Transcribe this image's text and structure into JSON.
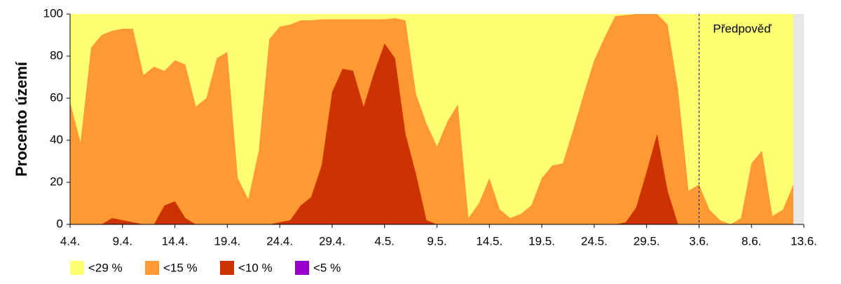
{
  "chart_data": {
    "type": "area",
    "ylabel": "Procento území",
    "categories": [
      "4.4.",
      null,
      null,
      null,
      null,
      "9.4.",
      null,
      null,
      null,
      null,
      "14.4.",
      null,
      null,
      null,
      null,
      "19.4.",
      null,
      null,
      null,
      null,
      "24.4.",
      null,
      null,
      null,
      null,
      "29.4.",
      null,
      null,
      null,
      null,
      "4.5.",
      null,
      null,
      null,
      null,
      "9.5.",
      null,
      null,
      null,
      null,
      "14.5.",
      null,
      null,
      null,
      null,
      "19.5.",
      null,
      null,
      null,
      null,
      "24.5.",
      null,
      null,
      null,
      null,
      "29.5.",
      null,
      null,
      null,
      null,
      "3.6.",
      null,
      null,
      null,
      null,
      "8.6.",
      null,
      null,
      null,
      null,
      "13.6."
    ],
    "ylim": [
      0,
      100
    ],
    "yticks": [
      0,
      20,
      40,
      60,
      80,
      100
    ],
    "annotation": {
      "text": "Předpověď",
      "at": "3.6."
    },
    "series": [
      {
        "name": "<29 %",
        "color": "#ffff73",
        "values": [
          100,
          100,
          100,
          100,
          100,
          100,
          100,
          100,
          100,
          100,
          100,
          100,
          100,
          100,
          100,
          100,
          100,
          100,
          100,
          100,
          100,
          100,
          100,
          100,
          100,
          100,
          100,
          100,
          100,
          100,
          100,
          100,
          100,
          100,
          100,
          100,
          100,
          100,
          100,
          100,
          100,
          100,
          100,
          100,
          100,
          100,
          100,
          100,
          100,
          100,
          100,
          100,
          100,
          100,
          100,
          100,
          100,
          100,
          100,
          100,
          100,
          100,
          100,
          100,
          100,
          100,
          100,
          100,
          100,
          100,
          null
        ]
      },
      {
        "name": "<15 %",
        "color": "#ff9933",
        "values": [
          58,
          39,
          84,
          90,
          92,
          93,
          93,
          71,
          75,
          73,
          78,
          76,
          56,
          60,
          79,
          82,
          22,
          12,
          35,
          88,
          94,
          95,
          97,
          97,
          97.5,
          97.5,
          97.5,
          97.5,
          97.5,
          97.5,
          97.5,
          98,
          97,
          62,
          48,
          37,
          49,
          57,
          3,
          10,
          22,
          7,
          3,
          5,
          9,
          22,
          28,
          29,
          45,
          62,
          78,
          89,
          99,
          99.5,
          100,
          100,
          100,
          95,
          64,
          16,
          19,
          7,
          2,
          0,
          3,
          29,
          35,
          4,
          7,
          19,
          null
        ]
      },
      {
        "name": "<10 %",
        "color": "#cc3300",
        "values": [
          0,
          0,
          0,
          0,
          3,
          2,
          1,
          0,
          0,
          9,
          11,
          3,
          0,
          0,
          0,
          0,
          0,
          0,
          0,
          0,
          1,
          2,
          9,
          13,
          28,
          63,
          74,
          73,
          56,
          72,
          86,
          79,
          43,
          24,
          2,
          0,
          0,
          0,
          0,
          0,
          0,
          0,
          0,
          0,
          0,
          0,
          0,
          0,
          0,
          0,
          0,
          0,
          0,
          1,
          8,
          25,
          43,
          16,
          0,
          0,
          0,
          0,
          0,
          0,
          0,
          0,
          0,
          0,
          0,
          0,
          null
        ]
      },
      {
        "name": "<5 %",
        "color": "#9900cc",
        "values": [
          0,
          0,
          0,
          0,
          0,
          0,
          0,
          0,
          0,
          0,
          0,
          0,
          0,
          0,
          0,
          0,
          0,
          0,
          0,
          0,
          0,
          0,
          0,
          0,
          0,
          0,
          0,
          0,
          0,
          0,
          0,
          0,
          0,
          0,
          0,
          0,
          0,
          0,
          0,
          0,
          0,
          0,
          0,
          0,
          0,
          0,
          0,
          0,
          0,
          0,
          0,
          0,
          0,
          0,
          0,
          0,
          0,
          0,
          0,
          0,
          0,
          0,
          0,
          0,
          0,
          0,
          0,
          0,
          0,
          0,
          null
        ]
      }
    ]
  }
}
